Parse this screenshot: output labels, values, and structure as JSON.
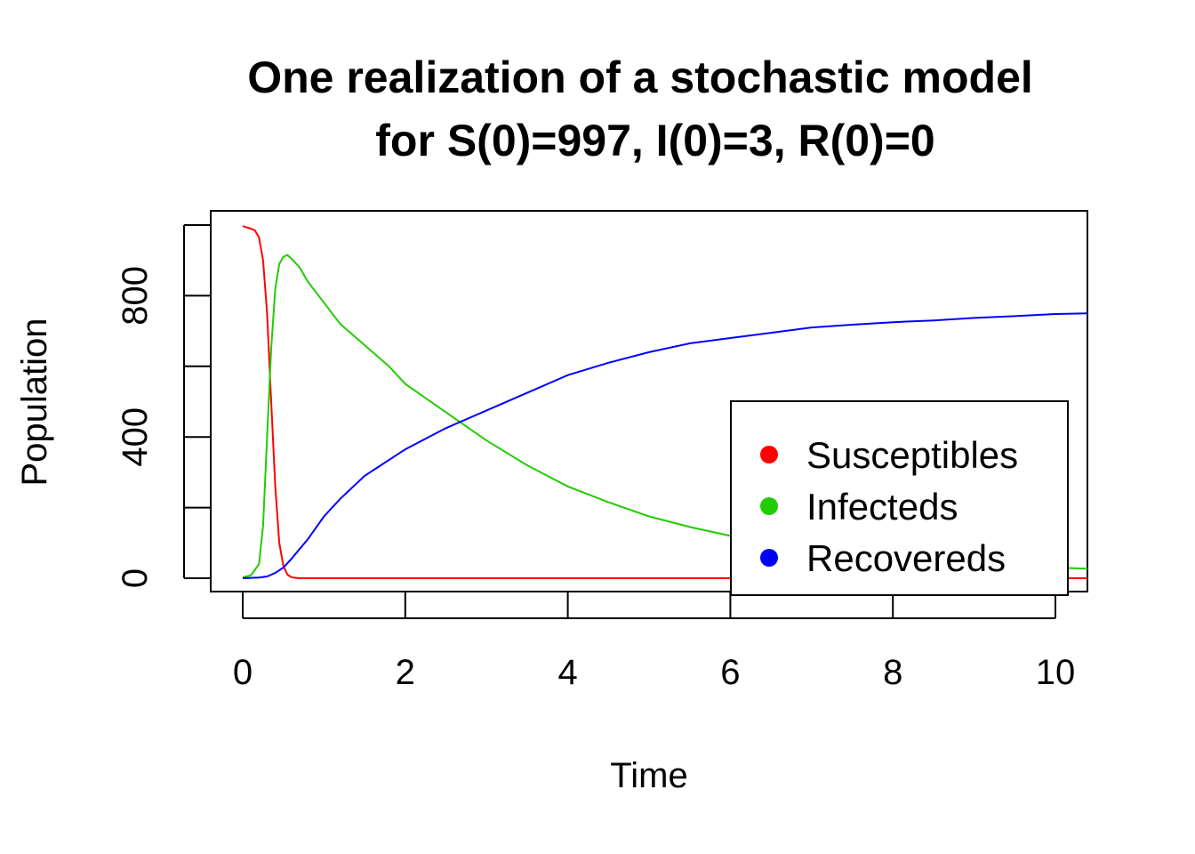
{
  "chart_data": {
    "type": "line",
    "title_line1": "One realization of a stochastic model",
    "title_line2": "for S(0)=997, I(0)=3, R(0)=0",
    "xlabel": "Time",
    "ylabel": "Population",
    "xlim": [
      0,
      10.4
    ],
    "ylim": [
      0,
      1000
    ],
    "x_ticks": [
      0,
      2,
      4,
      6,
      8,
      10
    ],
    "x_tick_labels": [
      "0",
      "2",
      "4",
      "6",
      "8",
      "10"
    ],
    "y_ticks": [
      0,
      200,
      400,
      600,
      800,
      1000
    ],
    "y_tick_labels": [
      "0",
      "",
      "400",
      "",
      "800",
      ""
    ],
    "grid": false,
    "legend_position": "bottom-right",
    "series": [
      {
        "name": "Susceptibles",
        "color": "#ff0000",
        "x": [
          0,
          0.1,
          0.15,
          0.2,
          0.25,
          0.3,
          0.35,
          0.4,
          0.45,
          0.5,
          0.55,
          0.6,
          0.65,
          0.7,
          1.0,
          2,
          4,
          6,
          8,
          10,
          10.4
        ],
        "y": [
          997,
          990,
          985,
          965,
          900,
          750,
          500,
          260,
          100,
          35,
          10,
          3,
          1,
          0,
          0,
          0,
          0,
          0,
          0,
          0,
          0
        ]
      },
      {
        "name": "Infecteds",
        "color": "#22cc00",
        "x": [
          0,
          0.1,
          0.2,
          0.25,
          0.3,
          0.35,
          0.4,
          0.45,
          0.5,
          0.55,
          0.6,
          0.7,
          0.8,
          1.0,
          1.2,
          1.5,
          1.8,
          2.0,
          2.5,
          3.0,
          3.5,
          4.0,
          4.5,
          5.0,
          5.5,
          6.0,
          6.5,
          7.0,
          8.0,
          9.0,
          10.0,
          10.4
        ],
        "y": [
          3,
          8,
          40,
          150,
          400,
          650,
          820,
          890,
          910,
          915,
          905,
          880,
          840,
          780,
          720,
          660,
          600,
          550,
          470,
          390,
          320,
          260,
          215,
          175,
          145,
          120,
          100,
          80,
          55,
          40,
          30,
          27
        ]
      },
      {
        "name": "Recovereds",
        "color": "#0000ff",
        "x": [
          0,
          0.2,
          0.3,
          0.4,
          0.5,
          0.6,
          0.8,
          1.0,
          1.2,
          1.5,
          2.0,
          2.5,
          3.0,
          3.5,
          4.0,
          4.5,
          5.0,
          5.5,
          6.0,
          6.5,
          7.0,
          7.5,
          8.0,
          8.5,
          9.0,
          9.5,
          10.0,
          10.4
        ],
        "y": [
          0,
          2,
          5,
          15,
          30,
          55,
          110,
          175,
          225,
          290,
          365,
          425,
          475,
          525,
          575,
          610,
          640,
          665,
          680,
          695,
          710,
          718,
          725,
          730,
          737,
          742,
          748,
          750
        ]
      }
    ]
  }
}
